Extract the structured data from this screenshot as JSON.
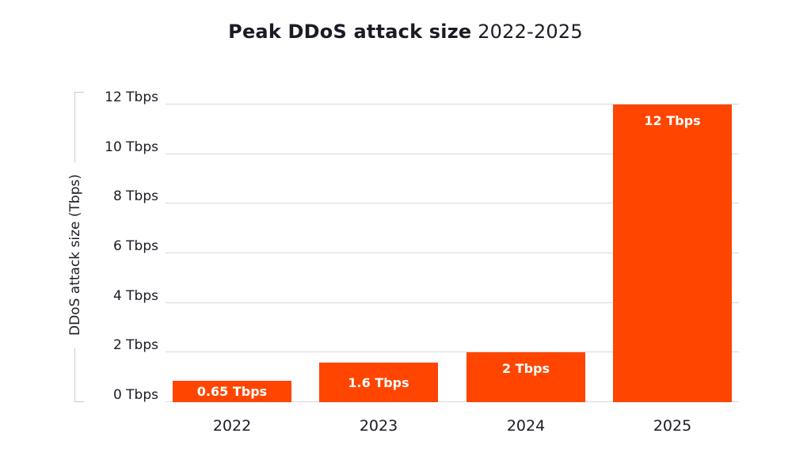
{
  "title": {
    "bold_part": "Peak DDoS attack size",
    "regular_part": "2022-2025"
  },
  "chart_data": {
    "type": "bar",
    "title": "Peak DDoS attack size 2022-2025",
    "categories": [
      "2022",
      "2023",
      "2024",
      "2025"
    ],
    "values": [
      0.65,
      1.6,
      2,
      12
    ],
    "bar_labels": [
      "0.65 Tbps",
      "1.6 Tbps",
      "2 Tbps",
      "12 Tbps"
    ],
    "ylabel": "DDoS attack size (Tbps)",
    "xlabel": "",
    "yticks": [
      "0 Tbps",
      "2 Tbps",
      "4 Tbps",
      "6 Tbps",
      "8 Tbps",
      "10 Tbps",
      "12 Tbps"
    ],
    "ytick_values": [
      0,
      2,
      4,
      6,
      8,
      10,
      12
    ],
    "ylim": [
      0,
      12
    ],
    "grid": true,
    "legend": "none",
    "colors": {
      "bar": "#ff4500",
      "bar_label_text": "#ffffff",
      "text": "#1b1b26",
      "gridline": "#d8d8d8",
      "axis_bracket": "#c9c9c9",
      "background": "#ffffff"
    }
  }
}
